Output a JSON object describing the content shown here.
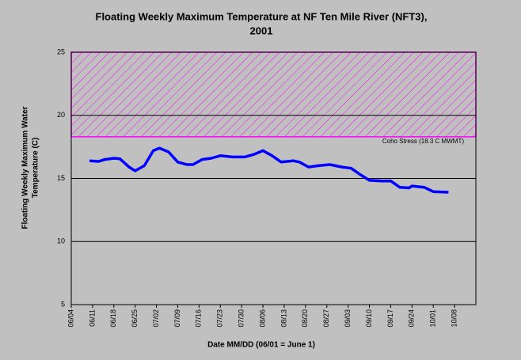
{
  "chart_data": {
    "type": "line",
    "title": [
      "Floating Weekly Maximum Temperature at NF Ten Mile River (NFT3),",
      "2001"
    ],
    "y_label": [
      "Floating Weekly Maximum Water",
      "Temperature (C)"
    ],
    "x_label": "Date MM/DD (06/01 = June 1)",
    "xlim": [
      "06/04",
      "10/15"
    ],
    "xticks": [
      "06/04",
      "06/11",
      "06/18",
      "06/25",
      "07/02",
      "07/09",
      "07/16",
      "07/23",
      "07/30",
      "08/06",
      "08/13",
      "08/20",
      "08/27",
      "09/03",
      "09/10",
      "09/17",
      "09/24",
      "10/01",
      "10/08"
    ],
    "ylim": [
      5,
      25
    ],
    "yticks": [
      5,
      10,
      15,
      20,
      25
    ],
    "grid": true,
    "threshold": {
      "value": 18.3,
      "label": "Coho Stress (18.3 C MWMT)",
      "color": "#ff00ff"
    },
    "series": [
      {
        "color": "#0000ff",
        "x": [
          "06/10",
          "06/13",
          "06/15",
          "06/18",
          "06/20",
          "06/23",
          "06/25",
          "06/28",
          "07/01",
          "07/03",
          "07/06",
          "07/09",
          "07/12",
          "07/14",
          "07/17",
          "07/20",
          "07/23",
          "07/27",
          "07/31",
          "08/03",
          "08/06",
          "08/09",
          "08/12",
          "08/16",
          "08/18",
          "08/21",
          "08/24",
          "08/28",
          "09/01",
          "09/04",
          "09/07",
          "09/10",
          "09/14",
          "09/17",
          "09/20",
          "09/23",
          "09/24",
          "09/28",
          "10/01",
          "10/06"
        ],
        "values": [
          16.4,
          16.35,
          16.5,
          16.6,
          16.55,
          15.9,
          15.6,
          16.0,
          17.2,
          17.4,
          17.1,
          16.3,
          16.1,
          16.1,
          16.5,
          16.6,
          16.8,
          16.7,
          16.7,
          16.9,
          17.2,
          16.8,
          16.3,
          16.4,
          16.3,
          15.9,
          16.0,
          16.1,
          15.9,
          15.8,
          15.3,
          14.85,
          14.8,
          14.8,
          14.3,
          14.25,
          14.4,
          14.3,
          13.95,
          13.9
        ]
      }
    ]
  }
}
